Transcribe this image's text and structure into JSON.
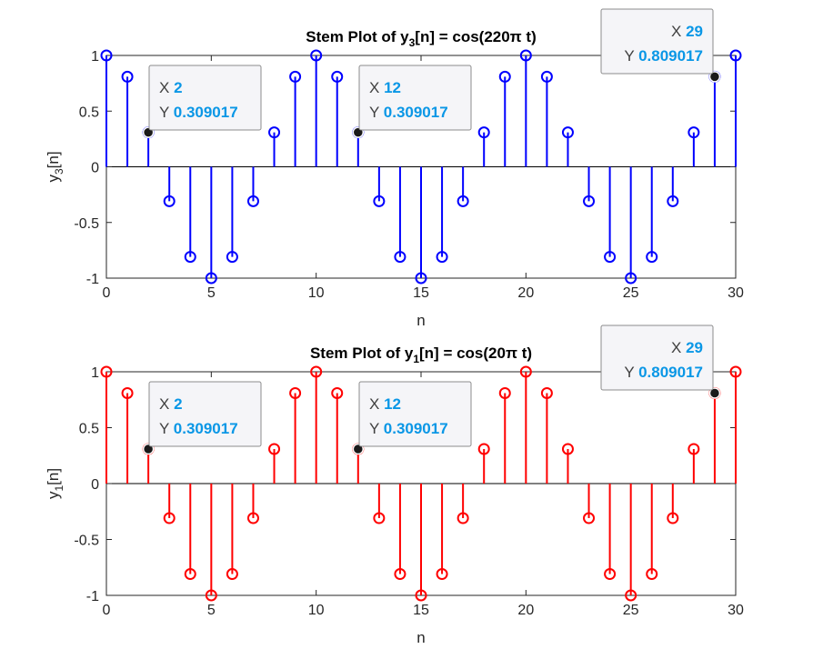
{
  "chart_data": [
    {
      "type": "stem",
      "title_prefix": "Stem Plot of y",
      "title_subscript": "3",
      "title_suffix": "[n] = cos(220π t)",
      "xlabel": "n",
      "ylabel_main": "y",
      "ylabel_subscript": "3",
      "ylabel_suffix": "[n]",
      "xlim": [
        0,
        30
      ],
      "ylim": [
        -1,
        1
      ],
      "xticks": [
        "0",
        "5",
        "10",
        "15",
        "20",
        "25",
        "30"
      ],
      "yticks": [
        "-1",
        "-0.5",
        "0",
        "0.5",
        "1"
      ],
      "grid": false,
      "color": "#0000ff",
      "x": [
        0,
        1,
        2,
        3,
        4,
        5,
        6,
        7,
        8,
        9,
        10,
        11,
        12,
        13,
        14,
        15,
        16,
        17,
        18,
        19,
        20,
        21,
        22,
        23,
        24,
        25,
        26,
        27,
        28,
        29,
        30
      ],
      "y": [
        1,
        0.809017,
        0.309017,
        -0.309017,
        -0.809017,
        -1,
        -0.809017,
        -0.309017,
        0.309017,
        0.809017,
        1,
        0.809017,
        0.309017,
        -0.309017,
        -0.809017,
        -1,
        -0.809017,
        -0.309017,
        0.309017,
        0.809017,
        1,
        0.809017,
        0.309017,
        -0.309017,
        -0.809017,
        -1,
        -0.809017,
        -0.309017,
        0.309017,
        0.809017,
        1
      ],
      "datatips": [
        {
          "x_label": "X",
          "x_value": "2",
          "y_label": "Y",
          "y_value": "0.309017",
          "x": 2,
          "y": 0.309017
        },
        {
          "x_label": "X",
          "x_value": "12",
          "y_label": "Y",
          "y_value": "0.309017",
          "x": 12,
          "y": 0.309017
        },
        {
          "x_label": "X",
          "x_value": "29",
          "y_label": "Y",
          "y_value": "0.809017",
          "x": 29,
          "y": 0.809017
        }
      ]
    },
    {
      "type": "stem",
      "title_prefix": "Stem Plot of y",
      "title_subscript": "1",
      "title_suffix": "[n] = cos(20π t)",
      "xlabel": "n",
      "ylabel_main": "y",
      "ylabel_subscript": "1",
      "ylabel_suffix": "[n]",
      "xlim": [
        0,
        30
      ],
      "ylim": [
        -1,
        1
      ],
      "xticks": [
        "0",
        "5",
        "10",
        "15",
        "20",
        "25",
        "30"
      ],
      "yticks": [
        "-1",
        "-0.5",
        "0",
        "0.5",
        "1"
      ],
      "grid": false,
      "color": "#ff0000",
      "x": [
        0,
        1,
        2,
        3,
        4,
        5,
        6,
        7,
        8,
        9,
        10,
        11,
        12,
        13,
        14,
        15,
        16,
        17,
        18,
        19,
        20,
        21,
        22,
        23,
        24,
        25,
        26,
        27,
        28,
        29,
        30
      ],
      "y": [
        1,
        0.809017,
        0.309017,
        -0.309017,
        -0.809017,
        -1,
        -0.809017,
        -0.309017,
        0.309017,
        0.809017,
        1,
        0.809017,
        0.309017,
        -0.309017,
        -0.809017,
        -1,
        -0.809017,
        -0.309017,
        0.309017,
        0.809017,
        1,
        0.809017,
        0.309017,
        -0.309017,
        -0.809017,
        -1,
        -0.809017,
        -0.309017,
        0.309017,
        0.809017,
        1
      ],
      "datatips": [
        {
          "x_label": "X",
          "x_value": "2",
          "y_label": "Y",
          "y_value": "0.309017",
          "x": 2,
          "y": 0.309017
        },
        {
          "x_label": "X",
          "x_value": "12",
          "y_label": "Y",
          "y_value": "0.309017",
          "x": 12,
          "y": 0.309017
        },
        {
          "x_label": "X",
          "x_value": "29",
          "y_label": "Y",
          "y_value": "0.809017",
          "x": 29,
          "y": 0.809017
        }
      ]
    }
  ],
  "colors": {
    "axis": "#262626",
    "datatip_value": "#0a97e6",
    "datatip_border": "#8c8c8c",
    "datatip_bg": "#f5f5f8"
  }
}
